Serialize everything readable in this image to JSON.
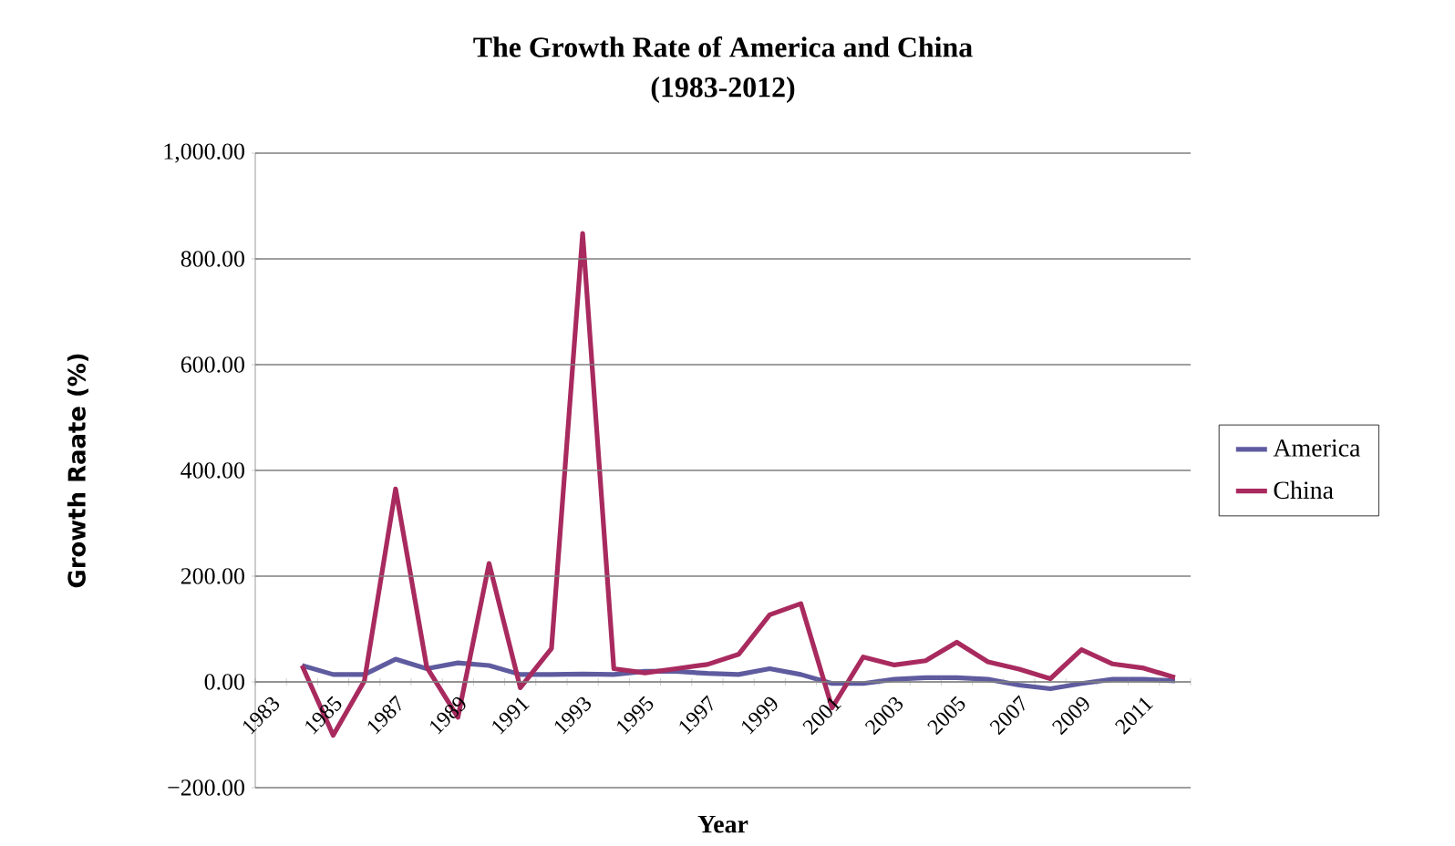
{
  "chart_data": {
    "type": "line",
    "title": "The Growth Rate of America and China\n(1983-2012)",
    "xlabel": "Year",
    "ylabel": "Growth Raate (%)",
    "categories": [
      "1983",
      null,
      "1985",
      null,
      "1987",
      null,
      "1989",
      null,
      "1991",
      null,
      "1993",
      null,
      "1995",
      null,
      "1997",
      null,
      "1999",
      null,
      "2001",
      null,
      "2003",
      null,
      "2005",
      null,
      "2007",
      null,
      "2009",
      null,
      "2011",
      null
    ],
    "series": [
      {
        "name": "America",
        "color": "#5f5b9f",
        "values": [
          null,
          31,
          14,
          14,
          43,
          25,
          36,
          31,
          14,
          14,
          15,
          14,
          20,
          20,
          16,
          14,
          25,
          14,
          -3,
          -3,
          5,
          8,
          8,
          5,
          -6,
          -13,
          -3,
          5,
          5,
          2
        ]
      },
      {
        "name": "China",
        "color": "#a82a5e",
        "values": [
          null,
          31,
          -101,
          2,
          365,
          28,
          -67,
          224,
          -11,
          63,
          848,
          25,
          17,
          25,
          33,
          52,
          127,
          148,
          -49,
          47,
          32,
          40,
          75,
          38,
          24,
          6,
          61,
          34,
          26,
          8
        ]
      }
    ],
    "ylim": [
      -200,
      1000
    ],
    "yticks": [
      {
        "value": -200,
        "label": "−200.00"
      },
      {
        "value": 0,
        "label": "0.00"
      },
      {
        "value": 200,
        "label": "200.00"
      },
      {
        "value": 400,
        "label": "400.00"
      },
      {
        "value": 600,
        "label": "600.00"
      },
      {
        "value": 800,
        "label": "800.00"
      },
      {
        "value": 1000,
        "label": "1,000.00"
      }
    ],
    "grid": "y",
    "legend": "right",
    "marker": "none",
    "line_style": "solid"
  }
}
